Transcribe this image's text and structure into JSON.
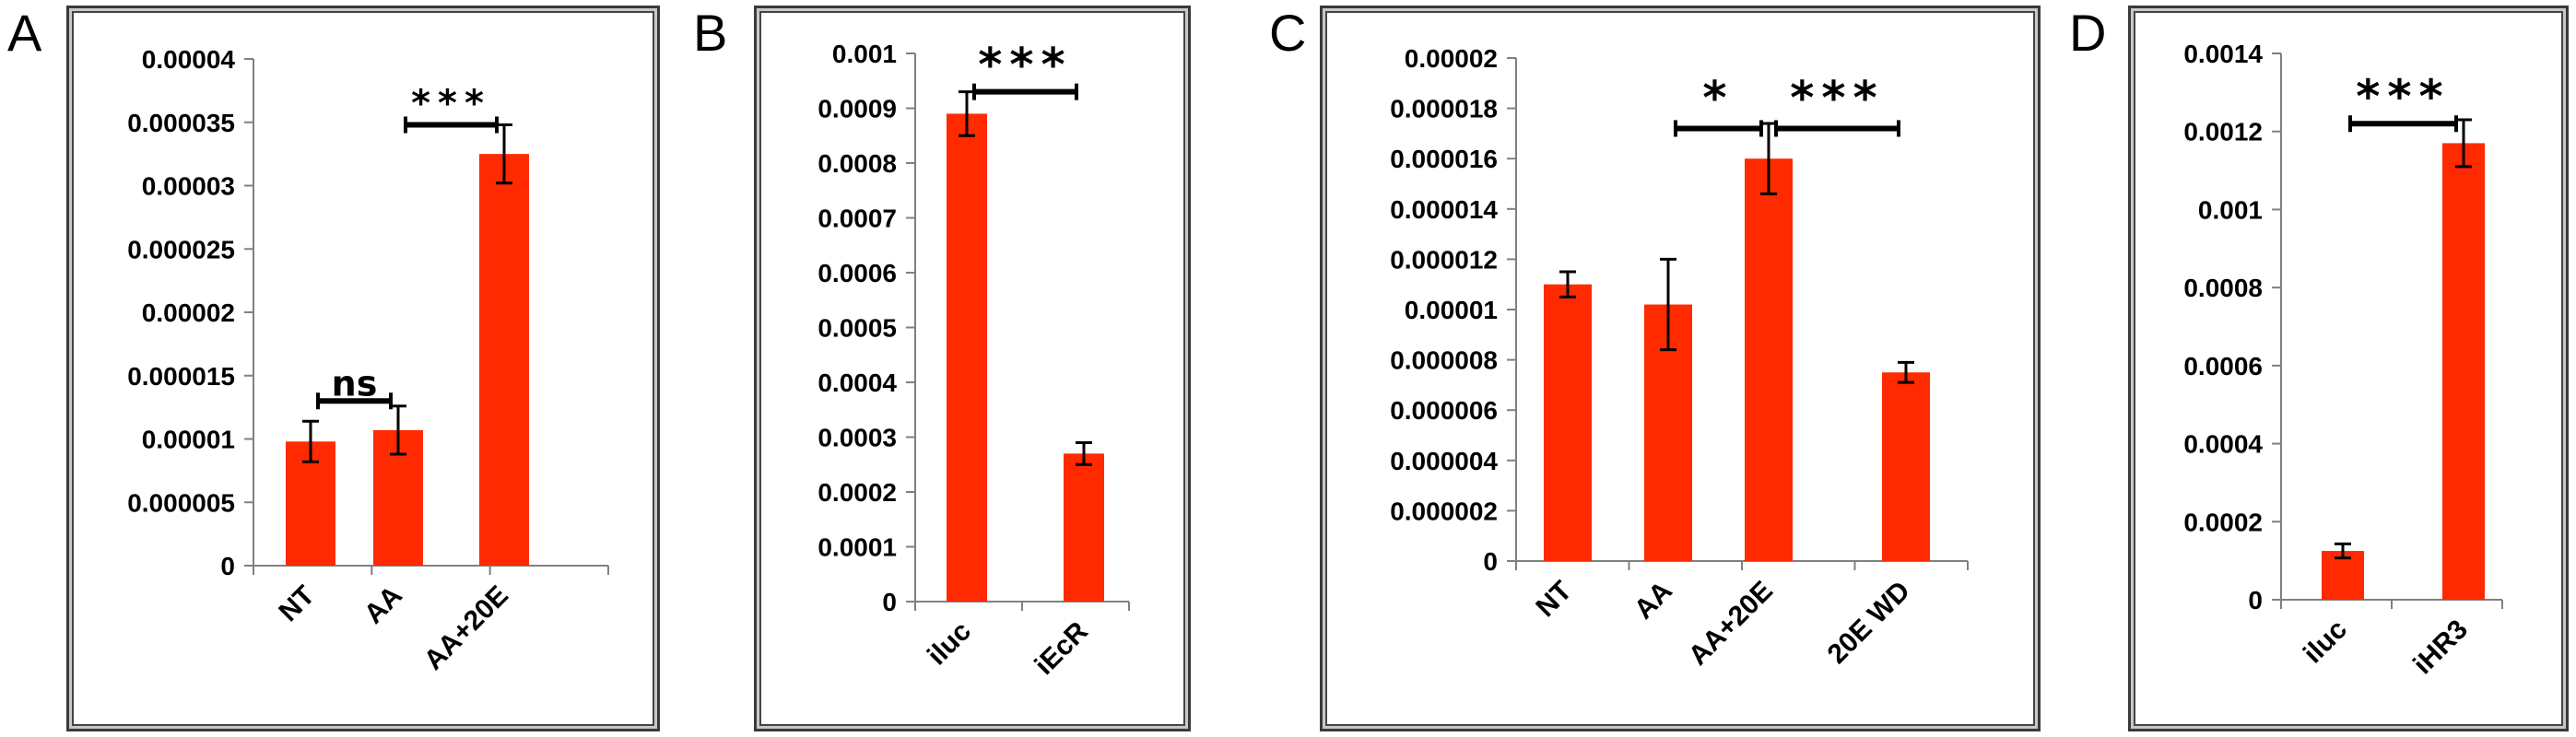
{
  "panels": [
    {
      "letter": "A"
    },
    {
      "letter": "B"
    },
    {
      "letter": "C"
    },
    {
      "letter": "D"
    }
  ],
  "colors": {
    "bar": "#ff2a00",
    "axis": "#808080",
    "text": "#000000"
  },
  "chart_data": [
    {
      "type": "bar",
      "categories": [
        "NT",
        "AA",
        "AA+20E"
      ],
      "values": [
        9.8e-06,
        1.07e-05,
        3.25e-05
      ],
      "errors": [
        1.6e-06,
        1.9e-06,
        2.3e-06
      ],
      "ylim": [
        0,
        4e-05
      ],
      "ytick_labels": [
        "0",
        "0.000005",
        "0.00001",
        "0.000015",
        "0.00002",
        "0.000025",
        "0.00003",
        "0.000035",
        "0.00004"
      ],
      "significance": [
        {
          "from": 0,
          "to": 1,
          "label": "ns",
          "y": 1.3e-05
        },
        {
          "from": 1,
          "to": 2,
          "label": "***",
          "y": 3.48e-05
        }
      ]
    },
    {
      "type": "bar",
      "categories": [
        "iluc",
        "iEcR"
      ],
      "values": [
        0.00089,
        0.00027
      ],
      "errors": [
        4e-05,
        2e-05
      ],
      "ylim": [
        0,
        0.001
      ],
      "ytick_labels": [
        "0",
        "0.0001",
        "0.0002",
        "0.0003",
        "0.0004",
        "0.0005",
        "0.0006",
        "0.0007",
        "0.0008",
        "0.0009",
        "0.001"
      ],
      "significance": [
        {
          "from": 0,
          "to": 1,
          "label": "***",
          "y": 0.00093
        }
      ]
    },
    {
      "type": "bar",
      "categories": [
        "NT",
        "AA",
        "AA+20E",
        "20E WD"
      ],
      "values": [
        1.1e-05,
        1.02e-05,
        1.6e-05,
        7.5e-06
      ],
      "errors": [
        5e-07,
        1.8e-06,
        1.4e-06,
        4e-07
      ],
      "ylim": [
        0,
        2e-05
      ],
      "ytick_labels": [
        "0",
        "0.000002",
        "0.000004",
        "0.000006",
        "0.000008",
        "0.00001",
        "0.000012",
        "0.000014",
        "0.000016",
        "0.000018",
        "0.00002"
      ],
      "significance": [
        {
          "from": 1,
          "to": 2,
          "label": "*",
          "y": 1.72e-05
        },
        {
          "from": 2,
          "to": 3,
          "label": "***",
          "y": 1.72e-05
        }
      ]
    },
    {
      "type": "bar",
      "categories": [
        "iluc",
        "iHR3"
      ],
      "values": [
        0.000125,
        0.00117
      ],
      "errors": [
        1.8e-05,
        6e-05
      ],
      "ylim": [
        0,
        0.0014
      ],
      "ytick_labels": [
        "0",
        "0.0002",
        "0.0004",
        "0.0006",
        "0.0008",
        "0.001",
        "0.0012",
        "0.0014"
      ],
      "significance": [
        {
          "from": 0,
          "to": 1,
          "label": "***",
          "y": 0.00122
        }
      ]
    }
  ]
}
